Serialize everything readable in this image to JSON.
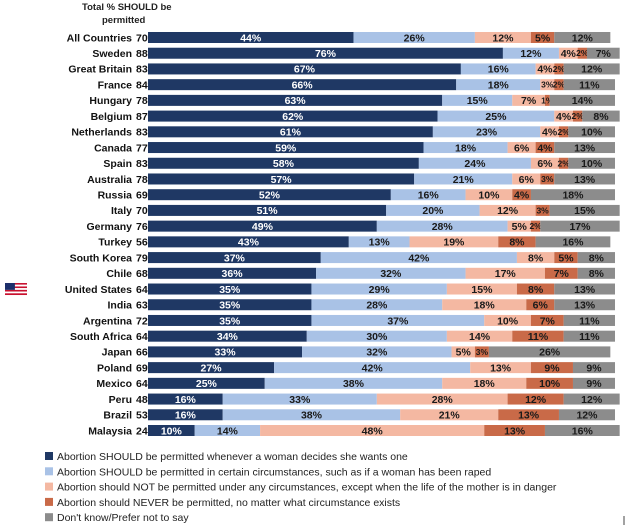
{
  "chart_data": {
    "type": "bar",
    "orientation": "horizontal",
    "stacked": true,
    "column_header": "Total % SHOULD be permitted",
    "highlighted_country": "United States",
    "highlight_icon": "us-flag-icon",
    "series": [
      {
        "name": "Abortion SHOULD be permitted whenever a woman decides she wants one",
        "color": "#1f3864"
      },
      {
        "name": "Abortion SHOULD be permitted in certain circumstances, such as if a woman has been raped",
        "color": "#a9c2e6"
      },
      {
        "name": "Abortion should NOT be permitted under any circumstances, except when the life of the mother is in danger",
        "color": "#f4b8a2"
      },
      {
        "name": "Abortion should NEVER be permitted, no matter what circumstance exists",
        "color": "#c96a48"
      },
      {
        "name": "Don't know/Prefer not to say",
        "color": "#8c8c8c"
      }
    ],
    "rows": [
      {
        "country": "All Countries",
        "total": "70%",
        "values": [
          44,
          26,
          12,
          5,
          12
        ],
        "labels": [
          "44%",
          "26%",
          "12%",
          "5%",
          "12%"
        ]
      },
      {
        "country": "Sweden",
        "total": "88%",
        "values": [
          76,
          12,
          4,
          2,
          7
        ],
        "labels": [
          "76%",
          "12%",
          "4%",
          "2%",
          "7%"
        ]
      },
      {
        "country": "Great Britain",
        "total": "83%",
        "values": [
          67,
          16,
          4,
          2,
          12
        ],
        "labels": [
          "67%",
          "16%",
          "4%",
          "2%",
          "12%"
        ]
      },
      {
        "country": "France",
        "total": "84%",
        "values": [
          66,
          18,
          3,
          2,
          11
        ],
        "labels": [
          "66%",
          "18%",
          "3%",
          "2%",
          "11%"
        ]
      },
      {
        "country": "Hungary",
        "total": "78%",
        "values": [
          63,
          15,
          7,
          1,
          14
        ],
        "labels": [
          "63%",
          "15%",
          "7%",
          "1%",
          "14%"
        ]
      },
      {
        "country": "Belgium",
        "total": "87%",
        "values": [
          62,
          25,
          4,
          2,
          8
        ],
        "labels": [
          "62%",
          "25%",
          "4%",
          "2%",
          "8%"
        ]
      },
      {
        "country": "Netherlands",
        "total": "83%",
        "values": [
          61,
          23,
          4,
          2,
          10
        ],
        "labels": [
          "61%",
          "23%",
          "4%",
          "2%",
          "10%"
        ]
      },
      {
        "country": "Canada",
        "total": "77%",
        "values": [
          59,
          18,
          6,
          4,
          13
        ],
        "labels": [
          "59%",
          "18%",
          "6%",
          "4%",
          "13%"
        ]
      },
      {
        "country": "Spain",
        "total": "83%",
        "values": [
          58,
          24,
          6,
          2,
          10
        ],
        "labels": [
          "58%",
          "24%",
          "6%",
          "2%",
          "10%"
        ]
      },
      {
        "country": "Australia",
        "total": "78%",
        "values": [
          57,
          21,
          6,
          3,
          13
        ],
        "labels": [
          "57%",
          "21%",
          "6%",
          "3%",
          "13%"
        ]
      },
      {
        "country": "Russia",
        "total": "69%",
        "values": [
          52,
          16,
          10,
          4,
          18
        ],
        "labels": [
          "52%",
          "16%",
          "10%",
          "4%",
          "18%"
        ]
      },
      {
        "country": "Italy",
        "total": "70%",
        "values": [
          51,
          20,
          12,
          3,
          15
        ],
        "labels": [
          "51%",
          "20%",
          "12%",
          "3%",
          "15%"
        ]
      },
      {
        "country": "Germany",
        "total": "76%",
        "values": [
          49,
          28,
          5,
          2,
          17
        ],
        "labels": [
          "49%",
          "28%",
          "5%",
          "2%",
          "17%"
        ]
      },
      {
        "country": "Turkey",
        "total": "56%",
        "values": [
          43,
          13,
          19,
          8,
          16
        ],
        "labels": [
          "43%",
          "13%",
          "19%",
          "8%",
          "16%"
        ]
      },
      {
        "country": "South Korea",
        "total": "79%",
        "values": [
          37,
          42,
          8,
          5,
          8
        ],
        "labels": [
          "37%",
          "42%",
          "8%",
          "5%",
          "8%"
        ]
      },
      {
        "country": "Chile",
        "total": "68%",
        "values": [
          36,
          32,
          17,
          7,
          8
        ],
        "labels": [
          "36%",
          "32%",
          "17%",
          "7%",
          "8%"
        ]
      },
      {
        "country": "United States",
        "total": "64%",
        "values": [
          35,
          29,
          15,
          8,
          13
        ],
        "labels": [
          "35%",
          "29%",
          "15%",
          "8%",
          "13%"
        ]
      },
      {
        "country": "India",
        "total": "63%",
        "values": [
          35,
          28,
          18,
          6,
          13
        ],
        "labels": [
          "35%",
          "28%",
          "18%",
          "6%",
          "13%"
        ]
      },
      {
        "country": "Argentina",
        "total": "72%",
        "values": [
          35,
          37,
          10,
          7,
          11
        ],
        "labels": [
          "35%",
          "37%",
          "10%",
          "7%",
          "11%"
        ]
      },
      {
        "country": "South Africa",
        "total": "64%",
        "values": [
          34,
          30,
          14,
          11,
          11
        ],
        "labels": [
          "34%",
          "30%",
          "14%",
          "11%",
          "11%"
        ]
      },
      {
        "country": "Japan",
        "total": "66%",
        "values": [
          33,
          32,
          5,
          3,
          26
        ],
        "labels": [
          "33%",
          "32%",
          "5%",
          "3%",
          "26%"
        ]
      },
      {
        "country": "Poland",
        "total": "69%",
        "values": [
          27,
          42,
          13,
          9,
          9
        ],
        "labels": [
          "27%",
          "42%",
          "13%",
          "9%",
          "9%"
        ]
      },
      {
        "country": "Mexico",
        "total": "64%",
        "values": [
          25,
          38,
          18,
          10,
          9
        ],
        "labels": [
          "25%",
          "38%",
          "18%",
          "10%",
          "9%"
        ]
      },
      {
        "country": "Peru",
        "total": "48%",
        "values": [
          16,
          33,
          28,
          12,
          12
        ],
        "labels": [
          "16%",
          "33%",
          "28%",
          "12%",
          "12%"
        ]
      },
      {
        "country": "Brazil",
        "total": "53%",
        "values": [
          16,
          38,
          21,
          13,
          12
        ],
        "labels": [
          "16%",
          "38%",
          "21%",
          "13%",
          "12%"
        ]
      },
      {
        "country": "Malaysia",
        "total": "24%",
        "values": [
          10,
          14,
          48,
          13,
          16
        ],
        "labels": [
          "10%",
          "14%",
          "48%",
          "13%",
          "16%"
        ]
      }
    ]
  }
}
